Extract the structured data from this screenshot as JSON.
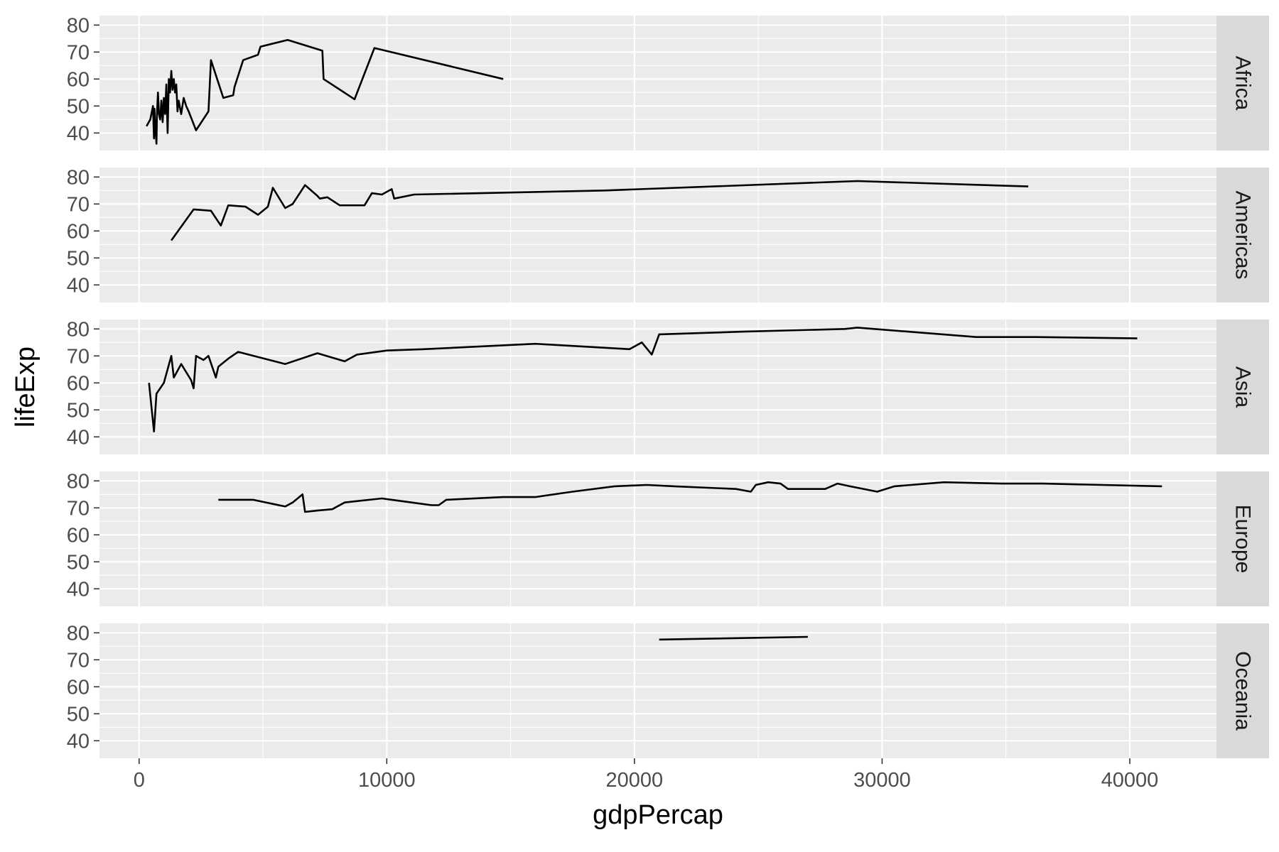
{
  "chart_data": {
    "type": "line",
    "facet_by": "continent",
    "xlabel": "gdpPercap",
    "ylabel": "lifeExp",
    "xlim": [
      -1600,
      43500
    ],
    "ylim": [
      33.5,
      83.5
    ],
    "x_ticks": [
      0,
      10000,
      20000,
      30000,
      40000
    ],
    "y_ticks": [
      40,
      50,
      60,
      70,
      80
    ],
    "colors": {
      "panel": "#ebebeb",
      "strip": "#d9d9d9",
      "grid": "#ffffff",
      "line": "#000000"
    },
    "panels": [
      {
        "label": "Africa",
        "x": [
          300,
          450,
          560,
          600,
          620,
          650,
          700,
          720,
          760,
          800,
          850,
          900,
          950,
          1000,
          1050,
          1100,
          1150,
          1200,
          1250,
          1300,
          1350,
          1400,
          1450,
          1500,
          1550,
          1600,
          1700,
          1800,
          1900,
          2000,
          2300,
          2800,
          2900,
          3400,
          3800,
          3850,
          4200,
          4800,
          4900,
          6000,
          7400,
          7450,
          8700,
          9500,
          14700
        ],
        "y": [
          42.5,
          45,
          50,
          38,
          49,
          43,
          36,
          47,
          55,
          47,
          45,
          52,
          44,
          53,
          47,
          58,
          40,
          60,
          55,
          63,
          56,
          60,
          55,
          58,
          48,
          52,
          47,
          53,
          50,
          48,
          41,
          48,
          67,
          53,
          54,
          57,
          67,
          69,
          72,
          74.5,
          70.5,
          60,
          52.5,
          71.5,
          60
        ]
      },
      {
        "label": "Americas",
        "x": [
          1300,
          2200,
          2900,
          3300,
          3600,
          4300,
          4800,
          5200,
          5400,
          5900,
          6200,
          6700,
          7200,
          7300,
          7600,
          8100,
          9100,
          9400,
          9800,
          10200,
          10300,
          11100,
          18800,
          29000,
          35900
        ],
        "y": [
          56.5,
          68,
          67.5,
          62,
          69.5,
          69,
          66,
          69,
          76,
          68.5,
          70,
          77,
          73,
          72,
          72.5,
          69.5,
          69.5,
          74,
          73.5,
          75.5,
          72,
          73.5,
          75,
          78.5,
          76.5
        ]
      },
      {
        "label": "Asia",
        "x": [
          400,
          600,
          700,
          1000,
          1300,
          1400,
          1700,
          2100,
          2200,
          2300,
          2600,
          2800,
          3100,
          3200,
          3600,
          4000,
          5900,
          7200,
          8300,
          8800,
          10000,
          11500,
          16000,
          19800,
          20300,
          20700,
          21000,
          24400,
          28500,
          29000,
          33800,
          36200,
          40300
        ],
        "y": [
          60,
          42,
          56,
          60,
          70,
          62,
          67,
          61,
          58,
          70,
          68.5,
          70,
          62,
          66,
          69,
          71.5,
          67,
          71,
          68,
          70.5,
          72,
          72.5,
          74.5,
          72.5,
          75,
          70.5,
          78,
          79,
          80,
          80.5,
          77,
          77,
          76.5
        ]
      },
      {
        "label": "Europe",
        "x": [
          3200,
          4600,
          5900,
          6200,
          6600,
          6700,
          7200,
          7800,
          8300,
          9800,
          10200,
          11000,
          11800,
          12100,
          12400,
          14700,
          16000,
          17500,
          19200,
          20500,
          21600,
          24100,
          24700,
          24900,
          25400,
          25900,
          26200,
          27700,
          28200,
          28700,
          29800,
          30500,
          32500,
          34800,
          36500,
          41300
        ],
        "y": [
          73,
          73,
          70.5,
          72,
          75,
          68.5,
          69,
          69.5,
          72,
          73.5,
          73,
          72,
          71,
          71,
          73,
          74,
          74,
          76,
          78,
          78.5,
          78,
          77,
          76,
          78.5,
          79.5,
          79,
          77,
          77,
          79,
          78,
          76,
          78,
          79.5,
          79,
          79,
          78
        ]
      },
      {
        "label": "Oceania",
        "x": [
          21000,
          27000
        ],
        "y": [
          77.5,
          78.5
        ]
      }
    ]
  }
}
